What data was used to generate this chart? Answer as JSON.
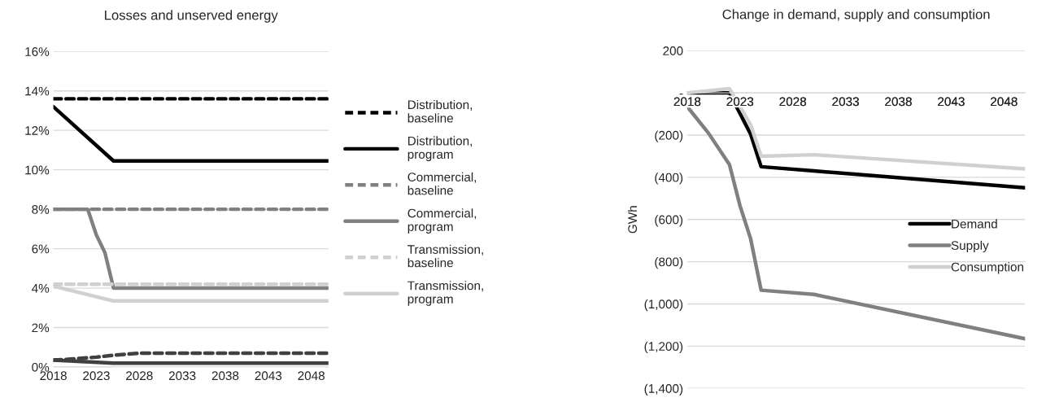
{
  "chart_data": [
    {
      "type": "line",
      "title": "Losses and unserved energy",
      "xlim": [
        2018,
        2050
      ],
      "xticks": [
        2018,
        2023,
        2028,
        2033,
        2038,
        2043,
        2048
      ],
      "ylim": [
        0,
        16
      ],
      "yticks": [
        {
          "value": 0,
          "label": "0%"
        },
        {
          "value": 2,
          "label": "2%"
        },
        {
          "value": 4,
          "label": "4%"
        },
        {
          "value": 6,
          "label": "6%"
        },
        {
          "value": 8,
          "label": "8%"
        },
        {
          "value": 10,
          "label": "10%"
        },
        {
          "value": 12,
          "label": "12%"
        },
        {
          "value": 14,
          "label": "14%"
        },
        {
          "value": 16,
          "label": "16%"
        }
      ],
      "grid": "y",
      "legend": "right",
      "marker": "none",
      "series": [
        {
          "name": "Distribution,\nbaseline",
          "color": "#000000",
          "line_style": "dashed",
          "x": [
            2018,
            2050
          ],
          "values": [
            13.6,
            13.6
          ]
        },
        {
          "name": "Distribution,\nprogram",
          "color": "#000000",
          "line_style": "solid",
          "x": [
            2018,
            2025,
            2050
          ],
          "values": [
            13.2,
            10.45,
            10.45
          ]
        },
        {
          "name": "Commercial,\nbaseline",
          "color": "#808080",
          "line_style": "dashed",
          "x": [
            2018,
            2050
          ],
          "values": [
            8,
            8
          ]
        },
        {
          "name": "Commercial,\nprogram",
          "color": "#808080",
          "line_style": "solid",
          "x": [
            2018,
            2022,
            2023,
            2024,
            2025,
            2050
          ],
          "values": [
            8,
            8,
            6.7,
            5.8,
            4,
            4
          ]
        },
        {
          "name": "Transmission,\nbaseline",
          "color": "#d0d0d0",
          "line_style": "dashed",
          "x": [
            2018,
            2050
          ],
          "values": [
            4.2,
            4.2
          ]
        },
        {
          "name": "Transmission,\nprogram",
          "color": "#d0d0d0",
          "line_style": "solid",
          "x": [
            2018,
            2025,
            2050
          ],
          "values": [
            4.1,
            3.35,
            3.35
          ]
        },
        {
          "color": "#404040",
          "line_style": "dashed",
          "x": [
            2018,
            2020,
            2023,
            2025,
            2028,
            2050
          ],
          "values": [
            0.35,
            0.4,
            0.5,
            0.6,
            0.7,
            0.7
          ]
        },
        {
          "color": "#404040",
          "line_style": "solid",
          "x": [
            2018,
            2025,
            2050
          ],
          "values": [
            0.35,
            0.2,
            0.2
          ]
        }
      ]
    },
    {
      "type": "line",
      "title": "Change in demand, supply and consumption",
      "ylabel": "GWh",
      "xlim": [
        2018,
        2050
      ],
      "xticks": [
        2018,
        2023,
        2028,
        2033,
        2038,
        2043,
        2048
      ],
      "ylim": [
        -1400,
        200
      ],
      "yticks": [
        {
          "value": 200,
          "label": "200"
        },
        {
          "value": 0,
          "label": "-"
        },
        {
          "value": -200,
          "label": "(200)"
        },
        {
          "value": -400,
          "label": "(400)"
        },
        {
          "value": -600,
          "label": "(600)"
        },
        {
          "value": -800,
          "label": "(800)"
        },
        {
          "value": -1000,
          "label": "(1,000)"
        },
        {
          "value": -1200,
          "label": "(1,200)"
        },
        {
          "value": -1400,
          "label": "(1,400)"
        }
      ],
      "grid": "y",
      "legend": "center right",
      "marker": "none",
      "line_style": "solid",
      "series": [
        {
          "name": "Demand",
          "color": "#000000",
          "x": [
            2018,
            2022,
            2024,
            2025,
            2030,
            2050
          ],
          "values": [
            0,
            0,
            -195,
            -350,
            -370,
            -450
          ]
        },
        {
          "name": "Supply",
          "color": "#808080",
          "x": [
            2018,
            2020,
            2022,
            2023,
            2024,
            2025,
            2030,
            2050
          ],
          "values": [
            -65,
            -190,
            -340,
            -535,
            -690,
            -935,
            -955,
            -1165
          ]
        },
        {
          "name": "Consumption",
          "color": "#d0d0d0",
          "x": [
            2018,
            2022,
            2024,
            2025,
            2030,
            2050
          ],
          "values": [
            0,
            20,
            -150,
            -300,
            -293,
            -360
          ]
        }
      ]
    }
  ]
}
